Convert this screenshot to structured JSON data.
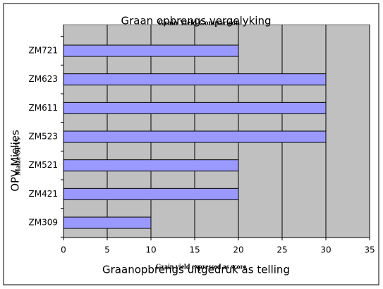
{
  "chart_data": {
    "type": "bar",
    "orientation": "horizontal",
    "title": "Graan opbrengs vergelyking",
    "title_overlay": "Grain Yield Comparison",
    "x_label": "Graanopbrengs uitgedruk as telling",
    "x_label_overlay": "Grain yield expressed as score",
    "y_label": "OPV Mielies",
    "y_label_overlay": "Maize OPVs",
    "categories": [
      "ZM721",
      "ZM623",
      "ZM611",
      "ZM523",
      "ZM521",
      "ZM421",
      "ZM309"
    ],
    "values": [
      20,
      30,
      30,
      30,
      20,
      20,
      10
    ],
    "color": "#9999ff",
    "xlim": [
      0,
      35
    ],
    "xticks": [
      0,
      5,
      10,
      15,
      20,
      25,
      30,
      35
    ],
    "grid": true
  }
}
